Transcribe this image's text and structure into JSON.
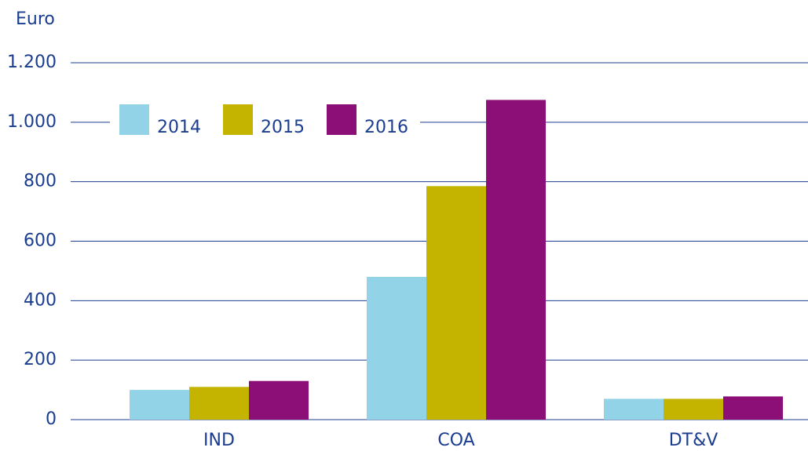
{
  "chart_data": {
    "type": "bar",
    "ylabel": "Euro",
    "categories": [
      "IND",
      "COA",
      "DT&V"
    ],
    "series": [
      {
        "name": "2014",
        "color": "#93d3e8",
        "values": [
          100,
          480,
          70
        ]
      },
      {
        "name": "2015",
        "color": "#c4b400",
        "values": [
          110,
          785,
          70
        ]
      },
      {
        "name": "2016",
        "color": "#8b0f76",
        "values": [
          130,
          1075,
          78
        ]
      }
    ],
    "ylim": [
      0,
      1200
    ],
    "yticks": [
      0,
      200,
      400,
      600,
      800,
      {
        "value": 1000,
        "label": "1.000"
      },
      {
        "value": 1200,
        "label": "1.200"
      }
    ],
    "grid": true,
    "legend": "upper left"
  }
}
